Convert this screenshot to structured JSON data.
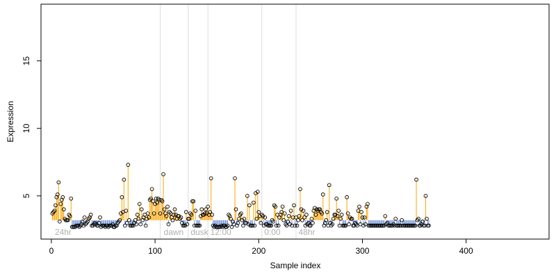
{
  "chart_data": {
    "type": "scatter",
    "xlabel": "Sample index",
    "ylabel": "Expression",
    "xlim": [
      -10,
      480
    ],
    "ylim": [
      1.8,
      19.2
    ],
    "x_ticks": [
      0,
      100,
      200,
      300,
      400
    ],
    "y_ticks": [
      5,
      10,
      15
    ],
    "baseline": 3.2,
    "colors": {
      "above": "#ffa500",
      "below": "#6f94d6",
      "points": "#000000",
      "vlines": "#dcdcdc",
      "region_labels": "#b0b0b0"
    },
    "grid": false,
    "vlines": [
      105,
      132,
      151,
      203,
      236
    ],
    "regions": [
      {
        "label": "24hr",
        "x": 2
      },
      {
        "label": "dawn",
        "x": 107
      },
      {
        "label": "dusk",
        "x": 133
      },
      {
        "label": "12:00",
        "x": 152
      },
      {
        "label": "0:00",
        "x": 204
      },
      {
        "label": "48hr",
        "x": 237
      }
    ],
    "series": [
      {
        "values": [
          3.7,
          3.8,
          3.9,
          4.3,
          4.9,
          5.1,
          6.0,
          3.1,
          4.4,
          4.7,
          4.9,
          4.0,
          3.3,
          3.2,
          3.2,
          3.2,
          3.6,
          3.5,
          4.8,
          2.7,
          2.7,
          2.7,
          2.7,
          2.8,
          2.8,
          2.8,
          2.7,
          2.8,
          2.9,
          3.1,
          2.8,
          3.4,
          2.9,
          3.0,
          3.1,
          3.3,
          3.4,
          3.6,
          2.8,
          2.8,
          2.9,
          3.0,
          2.9,
          2.8,
          2.8,
          3.0,
          3.4,
          2.7,
          2.8,
          2.8,
          2.8,
          2.7,
          2.8,
          2.8,
          2.7,
          2.8,
          2.8,
          2.8,
          2.9,
          2.7,
          2.7,
          2.8,
          2.8,
          3.0,
          3.1,
          3.2,
          3.7,
          4.9,
          3.8,
          6.2,
          2.8,
          3.9,
          3.0,
          7.3,
          3.2,
          2.8,
          2.8,
          2.8,
          2.8,
          3.0,
          3.2,
          2.9,
          3.6,
          3.3,
          4.4,
          2.9,
          4.0,
          3.2,
          3.4,
          3.6,
          2.8,
          3.3,
          3.7,
          3.4,
          4.7,
          4.8,
          5.5,
          4.6,
          3.7,
          4.4,
          4.8,
          4.5,
          4.8,
          4.7,
          3.7,
          4.7,
          4.6,
          6.6,
          4.0,
          3.7,
          3.5,
          4.2,
          2.9,
          3.8,
          3.7,
          3.4,
          3.2,
          3.6,
          4.0,
          3.6,
          3.3,
          3.5,
          3.5,
          3.3,
          3.4,
          3.0,
          2.8,
          2.8,
          2.8,
          3.8,
          2.9,
          3.3,
          3.3,
          3.7,
          3.6,
          4.6,
          4.6,
          2.8,
          3.9,
          2.8,
          2.8,
          2.8,
          2.8,
          3.5,
          4.0,
          3.6,
          3.6,
          3.7,
          4.0,
          3.7,
          4.2,
          3.6,
          3.8,
          6.3,
          3.6,
          2.8,
          2.7,
          2.8,
          2.7,
          2.7,
          2.7,
          2.7,
          2.7,
          2.8,
          2.7,
          2.8,
          2.8,
          2.7,
          2.7,
          2.8,
          3.6,
          3.5,
          3.3,
          2.7,
          3.1,
          2.9,
          6.3,
          4.0,
          2.8,
          3.0,
          3.3,
          3.6,
          3.7,
          3.2,
          2.8,
          3.3,
          3.0,
          3.0,
          5.0,
          2.9,
          4.3,
          2.8,
          2.8,
          2.8,
          4.5,
          2.8,
          5.2,
          3.3,
          5.3,
          3.8,
          3.5,
          3.0,
          3.6,
          3.5,
          2.8,
          3.4,
          2.9,
          2.9,
          2.8,
          2.8,
          2.8,
          2.8,
          3.2,
          3.1,
          4.3,
          4.2,
          2.8,
          3.6,
          2.8,
          3.4,
          3.6,
          3.8,
          4.2,
          3.2,
          3.7,
          2.9,
          2.8,
          3.1,
          3.5,
          2.9,
          3.9,
          2.8,
          3.4,
          4.3,
          2.8,
          3.4,
          2.8,
          3.2,
          3.5,
          5.5,
          4.0,
          3.2,
          3.9,
          3.4,
          2.8,
          3.6,
          2.9,
          3.0,
          2.8,
          2.8,
          3.3,
          3.0,
          3.9,
          4.1,
          3.6,
          4.0,
          3.9,
          4.0,
          4.0,
          3.8,
          3.7,
          5.1,
          2.8,
          3.0,
          3.2,
          3.8,
          2.8,
          5.8,
          3.0,
          2.8,
          2.9,
          3.3,
          3.6,
          3.6,
          4.8,
          3.5,
          3.9,
          2.8,
          3.3,
          3.6,
          2.8,
          2.8,
          2.8,
          2.8,
          4.9,
          3.7,
          2.9,
          3.4,
          3.3,
          3.3,
          2.8,
          2.8,
          3.0,
          2.9,
          2.8,
          3.9,
          4.2,
          2.9,
          3.8,
          3.4,
          2.8,
          3.4,
          2.9,
          4.2,
          4.4,
          2.8,
          2.8,
          2.8,
          2.8,
          2.8,
          2.8,
          2.8,
          2.8,
          2.8,
          2.8,
          2.8,
          2.8,
          2.8,
          2.8,
          2.8,
          2.8,
          3.5,
          2.9,
          3.0,
          2.8,
          2.8,
          2.8,
          2.8,
          2.8,
          2.9,
          2.8,
          3.3,
          2.8,
          2.8,
          2.8,
          2.8,
          2.8,
          3.2,
          2.8,
          2.8,
          2.8,
          2.8,
          2.8,
          2.8,
          2.8,
          2.8,
          2.8,
          2.8,
          2.8,
          2.8,
          2.8,
          6.2,
          3.2,
          3.3,
          2.8,
          2.8,
          2.9,
          3.1,
          2.8,
          2.8,
          5.0,
          3.3,
          2.8,
          2.8
        ]
      }
    ]
  }
}
